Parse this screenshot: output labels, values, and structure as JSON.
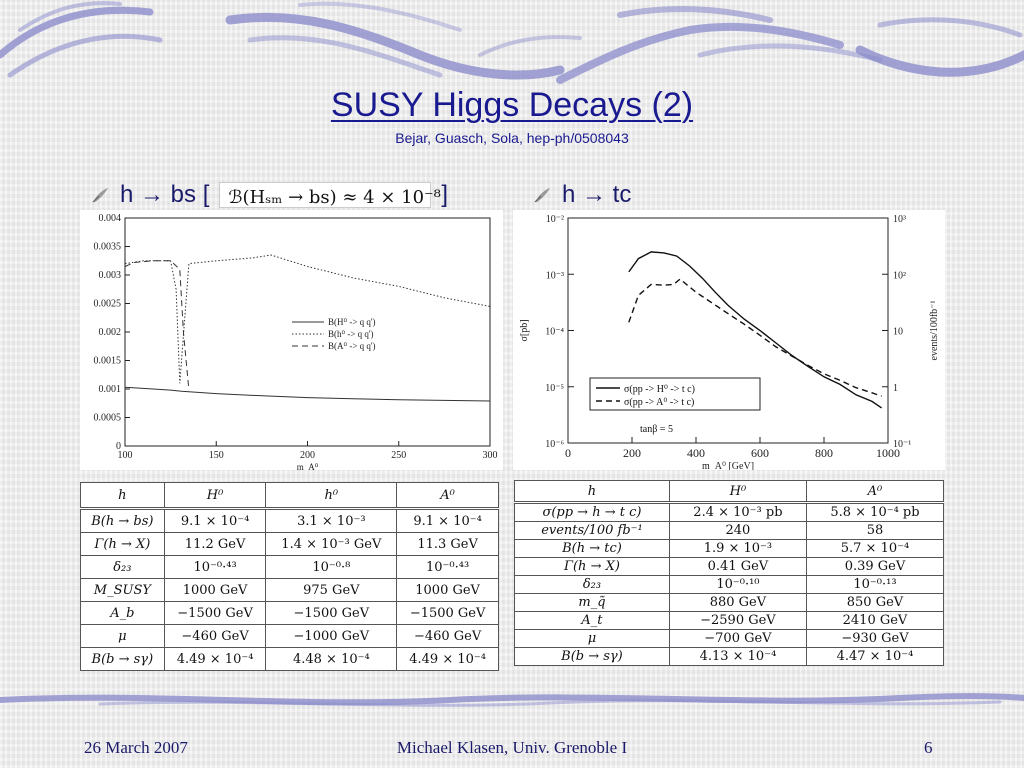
{
  "slide": {
    "title": "SUSY Higgs Decays (2)",
    "subtitle": "Bejar, Guasch, Sola, hep-ph/0508043",
    "bullets": [
      {
        "text": "h → bs [",
        "formula": "ℬ(Hₛₘ → bs) ≈ 4 × 10⁻⁸",
        "close": "]"
      },
      {
        "text": "h → tc"
      }
    ],
    "footer": {
      "date": "26 March 2007",
      "author": "Michael Klasen, Univ. Grenoble I",
      "page": "6"
    },
    "colors": {
      "title": "#1a1a90",
      "text": "#1a1a6a",
      "swirl": "#8c8ccc"
    }
  },
  "chart_data": [
    {
      "type": "line",
      "xlabel": "m_A⁰",
      "xlim": [
        100,
        300
      ],
      "ylim": [
        0,
        0.004
      ],
      "xticks": [
        100,
        150,
        200,
        250,
        300
      ],
      "yticks": [
        "0",
        "0.0005",
        "0.001",
        "0.0015",
        "0.002",
        "0.0025",
        "0.003",
        "0.0035",
        "0.004"
      ],
      "legend_position": "right",
      "series": [
        {
          "name": "B(H⁰ -> q q')",
          "style": "solid",
          "x": [
            100,
            110,
            125,
            131,
            135,
            150,
            175,
            200,
            225,
            250,
            275,
            300
          ],
          "y": [
            0.00103,
            0.00101,
            0.00098,
            0.00096,
            0.00095,
            0.00092,
            0.00088,
            0.00085,
            0.00083,
            0.00081,
            0.0008,
            0.00079
          ]
        },
        {
          "name": "B(h⁰ -> q q')",
          "style": "dotted",
          "x": [
            100,
            110,
            125,
            128,
            130,
            135,
            150,
            170,
            180,
            200,
            225,
            250,
            275,
            300
          ],
          "y": [
            0.0032,
            0.00325,
            0.00325,
            0.00275,
            0.0011,
            0.0032,
            0.00325,
            0.0033,
            0.00335,
            0.00315,
            0.00295,
            0.0028,
            0.0026,
            0.00245
          ]
        },
        {
          "name": "B(A⁰ -> q q')",
          "style": "dashed",
          "x": [
            100,
            105,
            115,
            125,
            130,
            132,
            135
          ],
          "y": [
            0.00315,
            0.00322,
            0.00325,
            0.00325,
            0.0031,
            0.002,
            0.00098
          ]
        }
      ]
    },
    {
      "type": "line",
      "xlabel": "m_A⁰ [GeV]",
      "ylabel": "σ[pb]",
      "y2label": "events/100fb⁻¹",
      "xlim": [
        0,
        1000
      ],
      "ylim": [
        1e-06,
        0.01
      ],
      "yscale": "log",
      "xticks": [
        0,
        200,
        400,
        600,
        800,
        1000
      ],
      "yticks": [
        "10⁻²",
        "10⁻³",
        "10⁻⁴",
        "10⁻⁵",
        "10⁻⁶"
      ],
      "y2ticks": [
        "10³",
        "10²",
        "10",
        "1",
        "10⁻¹"
      ],
      "annotation": "tanβ = 5",
      "legend_position": "bottom-left",
      "series": [
        {
          "name": "σ(pp -> H⁰ -> t c)",
          "style": "solid",
          "x": [
            190,
            220,
            260,
            300,
            340,
            380,
            420,
            460,
            500,
            550,
            600,
            650,
            700,
            750,
            800,
            850,
            900,
            950,
            980
          ],
          "y": [
            0.0011,
            0.0019,
            0.0025,
            0.0024,
            0.0021,
            0.0014,
            0.00085,
            0.00048,
            0.00028,
            0.00016,
            0.0001,
            6e-05,
            3.6e-05,
            2.3e-05,
            1.5e-05,
            1.1e-05,
            7.2e-06,
            5.5e-06,
            4.2e-06
          ]
        },
        {
          "name": "σ(pp -> A⁰ -> t c)",
          "style": "dashed",
          "x": [
            190,
            220,
            260,
            300,
            330,
            350,
            400,
            450,
            500,
            550,
            600,
            650,
            700,
            750,
            800,
            850,
            900,
            950,
            980
          ],
          "y": [
            0.00014,
            0.00042,
            0.00066,
            0.00064,
            0.00066,
            0.00082,
            0.00048,
            0.00031,
            0.0002,
            0.00013,
            8.2e-05,
            5.1e-05,
            3.5e-05,
            2.4e-05,
            1.7e-05,
            1.3e-05,
            9.6e-06,
            7.8e-06,
            6.8e-06
          ]
        }
      ]
    }
  ],
  "table_left": {
    "headers": [
      "h",
      "H⁰",
      "h⁰",
      "A⁰"
    ],
    "rows": [
      [
        "B(h → bs)",
        "9.1 × 10⁻⁴",
        "3.1 × 10⁻³",
        "9.1 × 10⁻⁴"
      ],
      [
        "Γ(h → X)",
        "11.2 GeV",
        "1.4 × 10⁻³ GeV",
        "11.3 GeV"
      ],
      [
        "δ₂₃",
        "10⁻⁰·⁴³",
        "10⁻⁰·⁸",
        "10⁻⁰·⁴³"
      ],
      [
        "M_SUSY",
        "1000 GeV",
        "975 GeV",
        "1000 GeV"
      ],
      [
        "A_b",
        "−1500 GeV",
        "−1500 GeV",
        "−1500 GeV"
      ],
      [
        "μ",
        "−460 GeV",
        "−1000 GeV",
        "−460 GeV"
      ],
      [
        "B(b → sγ)",
        "4.49 × 10⁻⁴",
        "4.48 × 10⁻⁴",
        "4.49 × 10⁻⁴"
      ]
    ]
  },
  "table_right": {
    "headers": [
      "h",
      "H⁰",
      "A⁰"
    ],
    "rows": [
      [
        "σ(pp → h → t c)",
        "2.4 × 10⁻³ pb",
        "5.8 × 10⁻⁴ pb"
      ],
      [
        "events/100 fb⁻¹",
        "240",
        "58"
      ],
      [
        "B(h → tc)",
        "1.9 × 10⁻³",
        "5.7 × 10⁻⁴"
      ],
      [
        "Γ(h → X)",
        "0.41 GeV",
        "0.39 GeV"
      ],
      [
        "δ₂₃",
        "10⁻⁰·¹⁰",
        "10⁻⁰·¹³"
      ],
      [
        "m_q̃",
        "880 GeV",
        "850 GeV"
      ],
      [
        "A_t",
        "−2590 GeV",
        "2410 GeV"
      ],
      [
        "μ",
        "−700 GeV",
        "−930 GeV"
      ],
      [
        "B(b → sγ)",
        "4.13 × 10⁻⁴",
        "4.47 × 10⁻⁴"
      ]
    ]
  }
}
